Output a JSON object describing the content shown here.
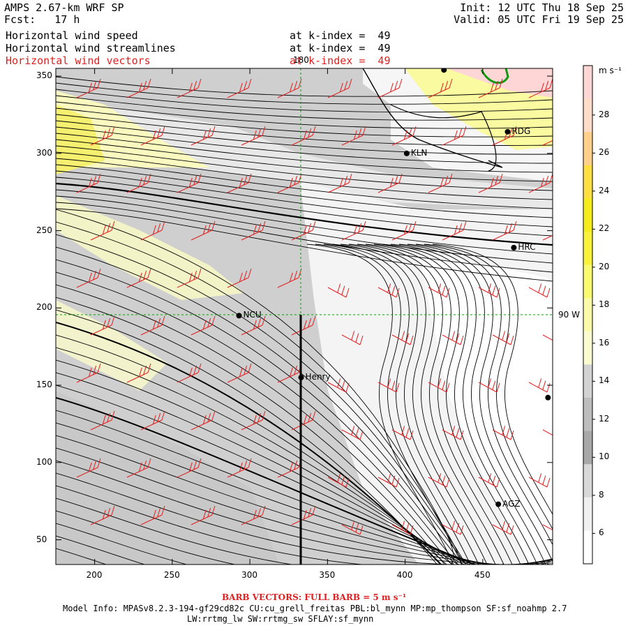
{
  "header": {
    "model": "AMPS 2.67-km WRF SP",
    "fcst": "Fcst:   17 h",
    "init": "Init: 12 UTC Thu 18 Sep 25",
    "valid": "Valid: 05 UTC Fri 19 Sep 25",
    "fields": [
      {
        "name": "Horizontal wind speed",
        "level": "at k-index =  49",
        "color": "#000000"
      },
      {
        "name": "Horizontal wind streamlines",
        "level": "at k-index =  49",
        "color": "#000000"
      },
      {
        "name": "Horizontal wind vectors",
        "level": "at k-index =  49",
        "color": "#e02020"
      }
    ]
  },
  "map": {
    "x_ticks": [
      "200",
      "250",
      "300",
      "350",
      "400",
      "450"
    ],
    "x_tick_values": [
      200,
      250,
      300,
      350,
      400,
      450
    ],
    "y_ticks": [
      "50",
      "100",
      "150",
      "200",
      "250",
      "300",
      "350"
    ],
    "y_tick_values": [
      50,
      100,
      150,
      200,
      250,
      300,
      350
    ],
    "x_range": [
      175,
      495
    ],
    "y_range": [
      34,
      355
    ],
    "grid_labels": {
      "meridian": "180",
      "parallel": "90 W"
    },
    "stations": [
      {
        "id": "KLN",
        "x": 401,
        "y": 300
      },
      {
        "id": "RDG",
        "x": 466,
        "y": 314
      },
      {
        "id": "HRC",
        "x": 470,
        "y": 239
      },
      {
        "id": "NCU",
        "x": 293,
        "y": 195
      },
      {
        "id": "Henry",
        "x": 333,
        "y": 155
      },
      {
        "id": "AGZ",
        "x": 460,
        "y": 73
      },
      {
        "id": "",
        "x": 492,
        "y": 142
      },
      {
        "id": "",
        "x": 425,
        "y": 354
      }
    ]
  },
  "colorbar": {
    "unit": "m s⁻¹",
    "labels": [
      "28",
      "26",
      "24",
      "22",
      "20",
      "18",
      "16",
      "14",
      "12",
      "10",
      "8",
      "6"
    ],
    "colors": [
      "#ffd6d6",
      "#ffdcc8",
      "#ffd08a",
      "#ffe040",
      "#f4ec1c",
      "#f8f23a",
      "#fafa70",
      "#fafaa8",
      "#fbfbd0",
      "#d2d2d2",
      "#bdbdbd",
      "#a8a8a8",
      "#d8d8d8",
      "#f0f0f0",
      "#ffffff"
    ]
  },
  "footer": {
    "barb_note": "BARB VECTORS:  FULL BARB = 5 m s⁻¹",
    "line1": "Model Info: MPASv8.2.3-194-gf29cd82c CU:cu_grell_freitas PBL:bl_mynn MP:mp_thompson SF:sf_noahmp 2.7",
    "line2": "LW:rrtmg_lw SW:rrtmg_sw SFLAY:sf_mynn"
  }
}
